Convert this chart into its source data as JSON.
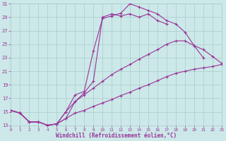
{
  "xlabel": "Windchill (Refroidissement éolien,°C)",
  "bg_color": "#cce8e8",
  "grid_color": "#aacccc",
  "line_color": "#993399",
  "xlim": [
    0,
    23
  ],
  "ylim": [
    13,
    31
  ],
  "ytick_vals": [
    13,
    15,
    17,
    19,
    21,
    23,
    25,
    27,
    29,
    31
  ],
  "xtick_vals": [
    0,
    1,
    2,
    3,
    4,
    5,
    6,
    7,
    8,
    9,
    10,
    11,
    12,
    13,
    14,
    15,
    16,
    17,
    18,
    19,
    20,
    21,
    22,
    23
  ],
  "line1_x": [
    0,
    1,
    2,
    3,
    4,
    5,
    6,
    7,
    8,
    9,
    10,
    11,
    12,
    13,
    14,
    15,
    16,
    17,
    18,
    19,
    20,
    21
  ],
  "line1_y": [
    15.2,
    14.8,
    13.5,
    13.5,
    13.0,
    13.2,
    15.0,
    17.5,
    18.0,
    24.0,
    28.8,
    29.2,
    29.6,
    31.0,
    30.5,
    30.0,
    29.5,
    28.5,
    28.0,
    26.8,
    24.8,
    23.0
  ],
  "line2_x": [
    0,
    1,
    2,
    3,
    4,
    5,
    6,
    7,
    8,
    9,
    10,
    11,
    12,
    13,
    14,
    15,
    16,
    17
  ],
  "line2_y": [
    15.2,
    14.8,
    13.5,
    13.5,
    13.0,
    13.2,
    15.0,
    16.5,
    17.8,
    19.5,
    29.0,
    29.5,
    29.2,
    29.5,
    29.0,
    29.5,
    28.5,
    28.0
  ],
  "line3_x": [
    0,
    1,
    2,
    3,
    4,
    5,
    6,
    7,
    8,
    9,
    10,
    11,
    12,
    13,
    14,
    15,
    16,
    17,
    18,
    19,
    20,
    21,
    22,
    23
  ],
  "line3_y": [
    15.2,
    14.8,
    13.5,
    13.5,
    13.0,
    13.2,
    14.0,
    14.8,
    15.2,
    15.8,
    16.3,
    16.8,
    17.4,
    17.9,
    18.5,
    19.0,
    19.6,
    20.2,
    20.7,
    21.0,
    21.3,
    21.5,
    21.7,
    22.0
  ],
  "line4_x": [
    0,
    1,
    2,
    3,
    4,
    5,
    6,
    7,
    8,
    9,
    10,
    11,
    12,
    13,
    14,
    15,
    16,
    17,
    18,
    19,
    20,
    21,
    22,
    23
  ],
  "line4_y": [
    15.2,
    14.8,
    13.5,
    13.5,
    13.0,
    13.2,
    14.0,
    16.5,
    17.5,
    18.5,
    19.5,
    20.5,
    21.3,
    22.0,
    22.8,
    23.5,
    24.2,
    25.0,
    25.5,
    25.5,
    24.8,
    24.2,
    23.2,
    22.2
  ]
}
